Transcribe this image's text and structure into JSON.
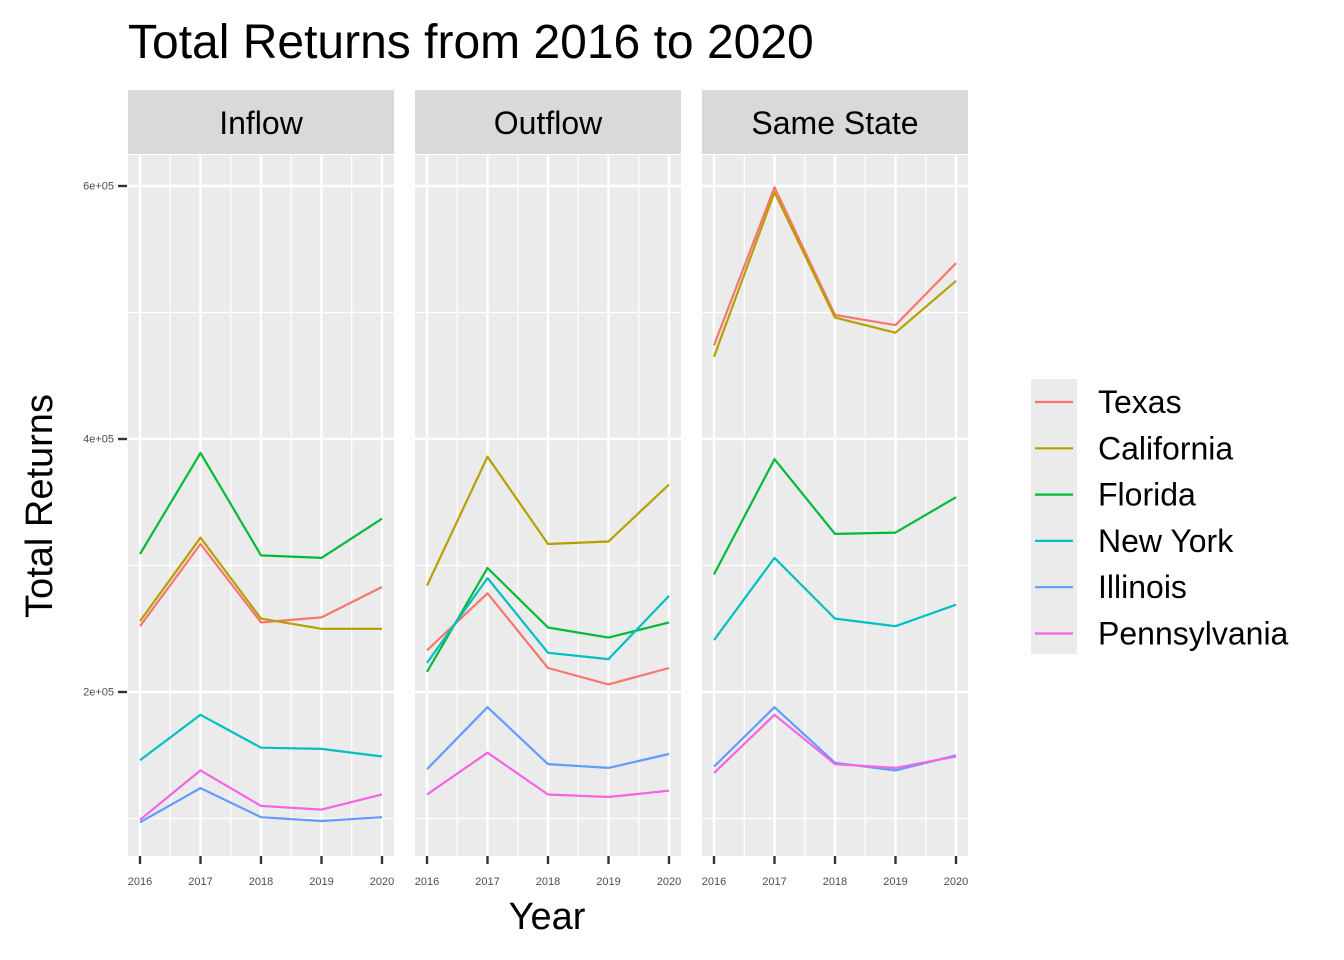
{
  "chart_data": {
    "type": "line",
    "title": "Total Returns from 2016 to 2020",
    "xlabel": "Year",
    "ylabel": "Total Returns",
    "x": [
      "2016",
      "2017",
      "2018",
      "2019",
      "2020"
    ],
    "ylim": [
      80000,
      620000
    ],
    "y_ticks": [
      200000,
      400000,
      600000
    ],
    "y_tick_labels": [
      "2e+05",
      "4e+05",
      "6e+05"
    ],
    "grid": true,
    "legend_position": "right",
    "panels": [
      {
        "label": "Inflow",
        "series": [
          {
            "name": "Texas",
            "values": [
              252000,
              317000,
              255000,
              259000,
              283000
            ]
          },
          {
            "name": "California",
            "values": [
              256000,
              322000,
              258000,
              250000,
              250000
            ]
          },
          {
            "name": "Florida",
            "values": [
              309000,
              389000,
              308000,
              306000,
              337000
            ]
          },
          {
            "name": "New York",
            "values": [
              146000,
              182000,
              156000,
              155000,
              149000
            ]
          },
          {
            "name": "Illinois",
            "values": [
              97000,
              124000,
              101000,
              98000,
              101000
            ]
          },
          {
            "name": "Pennsylvania",
            "values": [
              99000,
              138000,
              110000,
              107000,
              119000
            ]
          }
        ]
      },
      {
        "label": "Outflow",
        "series": [
          {
            "name": "Texas",
            "values": [
              233000,
              278000,
              219000,
              206000,
              219000
            ]
          },
          {
            "name": "California",
            "values": [
              284000,
              386000,
              317000,
              319000,
              364000
            ]
          },
          {
            "name": "Florida",
            "values": [
              216000,
              298000,
              251000,
              243000,
              255000
            ]
          },
          {
            "name": "New York",
            "values": [
              223000,
              290000,
              231000,
              226000,
              276000
            ]
          },
          {
            "name": "Illinois",
            "values": [
              139000,
              188000,
              143000,
              140000,
              151000
            ]
          },
          {
            "name": "Pennsylvania",
            "values": [
              119000,
              152000,
              119000,
              117000,
              122000
            ]
          }
        ]
      },
      {
        "label": "Same State",
        "series": [
          {
            "name": "Texas",
            "values": [
              474000,
              599000,
              498000,
              490000,
              539000
            ]
          },
          {
            "name": "California",
            "values": [
              465000,
              595000,
              496000,
              484000,
              525000
            ]
          },
          {
            "name": "Florida",
            "values": [
              293000,
              384000,
              325000,
              326000,
              354000
            ]
          },
          {
            "name": "New York",
            "values": [
              241000,
              306000,
              258000,
              252000,
              269000
            ]
          },
          {
            "name": "Illinois",
            "values": [
              141000,
              188000,
              144000,
              138000,
              150000
            ]
          },
          {
            "name": "Pennsylvania",
            "values": [
              136000,
              182000,
              143000,
              140000,
              149000
            ]
          }
        ]
      }
    ]
  },
  "colors": {
    "Texas": "#F8766D",
    "California": "#B79F00",
    "Florida": "#00BA38",
    "New York": "#00BFC4",
    "Illinois": "#619CFF",
    "Pennsylvania": "#F564E3",
    "panel_bg": "#EBEBEB",
    "strip_bg": "#D9D9D9",
    "grid": "#FFFFFF"
  }
}
